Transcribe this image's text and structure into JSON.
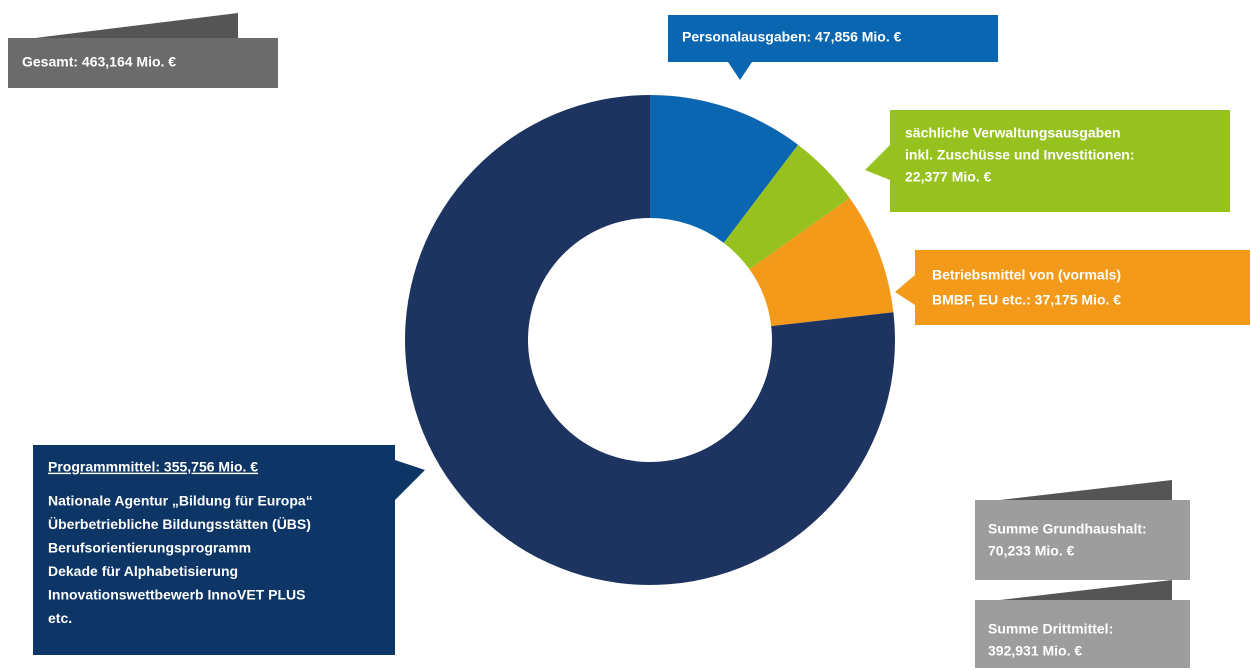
{
  "chart_data": {
    "type": "pie",
    "donut": true,
    "values": [
      47.856,
      22.377,
      37.175,
      355.756
    ],
    "colors": [
      "#0b66b1",
      "#97c11f",
      "#f39a1b",
      "#1d3461"
    ],
    "callouts": [
      {
        "lines": [
          "Personalausgaben: 47,856 Mio. €"
        ]
      },
      {
        "lines": [
          "sächliche Verwaltungsausgaben",
          "inkl. Zuschüsse und Investitionen:",
          "22,377  Mio. €"
        ]
      },
      {
        "lines": [
          "Betriebsmittel von (vormals)",
          "BMBF, EU etc.: 37,175 Mio. €"
        ]
      },
      {
        "lines": [
          "Programmmittel: 355,756 Mio. €"
        ],
        "details": [
          "Nationale Agentur „Bildung für Europa“",
          "Überbetriebliche Bildungsstätten (ÜBS)",
          "Berufsorientierungsprogramm",
          "Dekade für Alphabetisierung",
          "Innovationswettbewerb InnoVET PLUS",
          "etc."
        ]
      }
    ],
    "annotations": [
      {
        "lines": [
          "Gesamt: 463,164 Mio. €"
        ]
      },
      {
        "lines": [
          "Summe Grundhaushalt:",
          "70,233  Mio. €"
        ]
      },
      {
        "lines": [
          "Summe Drittmittel:",
          "392,931 Mio. €"
        ]
      }
    ]
  }
}
